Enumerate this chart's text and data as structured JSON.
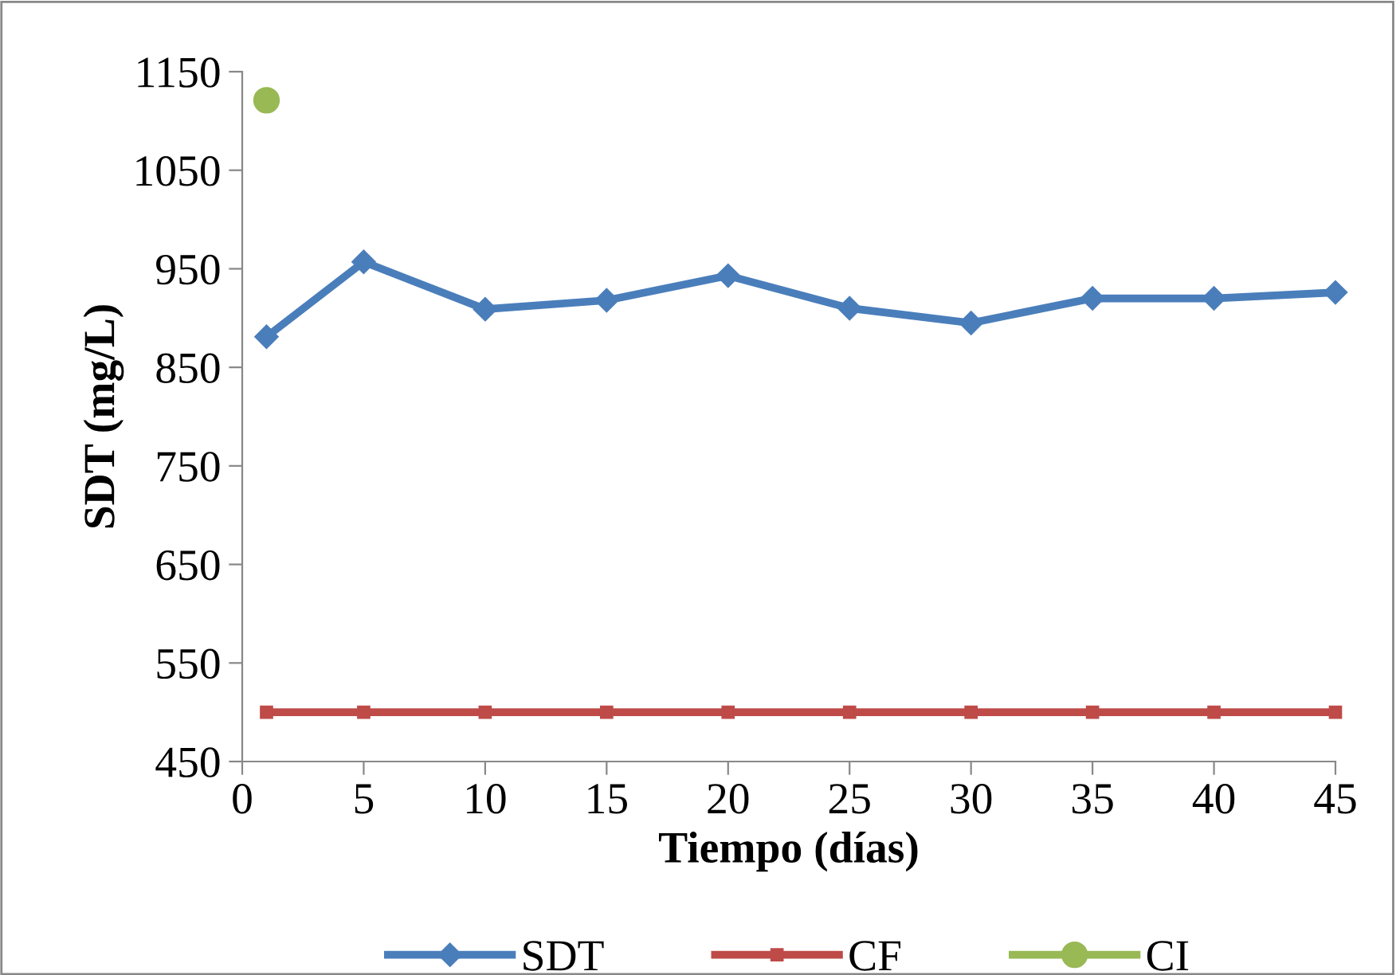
{
  "chart_data": {
    "type": "line",
    "xlabel": "Tiempo (días)",
    "ylabel": "SDT (mg/L)",
    "xlim": [
      0,
      45
    ],
    "xticks": [
      0,
      5,
      10,
      15,
      20,
      25,
      30,
      35,
      40,
      45
    ],
    "ylim": [
      450,
      1150
    ],
    "yticks": [
      450,
      550,
      650,
      750,
      850,
      950,
      1050,
      1150
    ],
    "grid": false,
    "legend": "bottom",
    "series": [
      {
        "name": "SDT",
        "color": "#4a7ebb",
        "marker": "diamond",
        "x": [
          1,
          5,
          10,
          15,
          20,
          25,
          30,
          35,
          40,
          45
        ],
        "values": [
          881,
          957,
          909,
          918,
          943,
          910,
          895,
          920,
          920,
          926
        ]
      },
      {
        "name": "CF",
        "color": "#be4b48",
        "marker": "square",
        "x": [
          1,
          5,
          10,
          15,
          20,
          25,
          30,
          35,
          40,
          45
        ],
        "values": [
          500,
          500,
          500,
          500,
          500,
          500,
          500,
          500,
          500,
          500
        ]
      },
      {
        "name": "CI",
        "color": "#98b954",
        "marker": "circle",
        "x": [
          1
        ],
        "values": [
          1121
        ]
      }
    ]
  }
}
